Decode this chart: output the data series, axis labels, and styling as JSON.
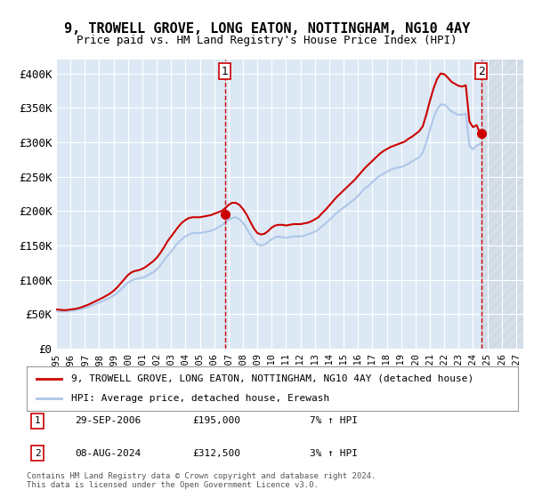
{
  "title": "9, TROWELL GROVE, LONG EATON, NOTTINGHAM, NG10 4AY",
  "subtitle": "Price paid vs. HM Land Registry's House Price Index (HPI)",
  "xlabel": "",
  "ylabel": "",
  "ylim": [
    0,
    420000
  ],
  "xlim_start": 1995.0,
  "xlim_end": 2027.5,
  "yticks": [
    0,
    50000,
    100000,
    150000,
    200000,
    250000,
    300000,
    350000,
    400000
  ],
  "ytick_labels": [
    "£0",
    "£50K",
    "£100K",
    "£150K",
    "£200K",
    "£250K",
    "£300K",
    "£350K",
    "£400K"
  ],
  "xtick_years": [
    1995,
    1996,
    1997,
    1998,
    1999,
    2000,
    2001,
    2002,
    2003,
    2004,
    2005,
    2006,
    2007,
    2008,
    2009,
    2010,
    2011,
    2012,
    2013,
    2014,
    2015,
    2016,
    2017,
    2018,
    2019,
    2020,
    2021,
    2022,
    2023,
    2024,
    2025,
    2026,
    2027
  ],
  "hpi_color": "#aec6e8",
  "price_color": "#cc0000",
  "marker_color": "#cc0000",
  "vline_color": "#cc0000",
  "background_color": "#dce9f5",
  "plot_bg_color": "#dce9f5",
  "grid_color": "#ffffff",
  "sale1_x": 2006.75,
  "sale1_y": 195000,
  "sale1_label": "1",
  "sale2_x": 2024.58,
  "sale2_y": 312500,
  "sale2_label": "2",
  "legend_line1": "9, TROWELL GROVE, LONG EATON, NOTTINGHAM, NG10 4AY (detached house)",
  "legend_line2": "HPI: Average price, detached house, Erewash",
  "note1_label": "1",
  "note1_date": "29-SEP-2006",
  "note1_price": "£195,000",
  "note1_hpi": "7% ↑ HPI",
  "note2_label": "2",
  "note2_date": "08-AUG-2024",
  "note2_price": "£312,500",
  "note2_hpi": "3% ↑ HPI",
  "copyright_text": "Contains HM Land Registry data © Crown copyright and database right 2024.\nThis data is licensed under the Open Government Licence v3.0.",
  "hpi_data_x": [
    1995.0,
    1995.25,
    1995.5,
    1995.75,
    1996.0,
    1996.25,
    1996.5,
    1996.75,
    1997.0,
    1997.25,
    1997.5,
    1997.75,
    1998.0,
    1998.25,
    1998.5,
    1998.75,
    1999.0,
    1999.25,
    1999.5,
    1999.75,
    2000.0,
    2000.25,
    2000.5,
    2000.75,
    2001.0,
    2001.25,
    2001.5,
    2001.75,
    2002.0,
    2002.25,
    2002.5,
    2002.75,
    2003.0,
    2003.25,
    2003.5,
    2003.75,
    2004.0,
    2004.25,
    2004.5,
    2004.75,
    2005.0,
    2005.25,
    2005.5,
    2005.75,
    2006.0,
    2006.25,
    2006.5,
    2006.75,
    2007.0,
    2007.25,
    2007.5,
    2007.75,
    2008.0,
    2008.25,
    2008.5,
    2008.75,
    2009.0,
    2009.25,
    2009.5,
    2009.75,
    2010.0,
    2010.25,
    2010.5,
    2010.75,
    2011.0,
    2011.25,
    2011.5,
    2011.75,
    2012.0,
    2012.25,
    2012.5,
    2012.75,
    2013.0,
    2013.25,
    2013.5,
    2013.75,
    2014.0,
    2014.25,
    2014.5,
    2014.75,
    2015.0,
    2015.25,
    2015.5,
    2015.75,
    2016.0,
    2016.25,
    2016.5,
    2016.75,
    2017.0,
    2017.25,
    2017.5,
    2017.75,
    2018.0,
    2018.25,
    2018.5,
    2018.75,
    2019.0,
    2019.25,
    2019.5,
    2019.75,
    2020.0,
    2020.25,
    2020.5,
    2020.75,
    2021.0,
    2021.25,
    2021.5,
    2021.75,
    2022.0,
    2022.25,
    2022.5,
    2022.75,
    2023.0,
    2023.25,
    2023.5,
    2023.75,
    2024.0,
    2024.25,
    2024.5
  ],
  "hpi_data_y": [
    55000,
    54500,
    54000,
    54500,
    55000,
    55500,
    56500,
    57500,
    59000,
    61000,
    63000,
    65000,
    67000,
    69000,
    71500,
    74000,
    77000,
    81000,
    86000,
    91000,
    96000,
    99000,
    101000,
    102000,
    103000,
    105000,
    108000,
    111000,
    115000,
    121000,
    128000,
    135000,
    141000,
    148000,
    154000,
    159000,
    163000,
    166000,
    168000,
    168000,
    168000,
    169000,
    170000,
    171000,
    173000,
    176000,
    179000,
    183000,
    187000,
    190000,
    191000,
    188000,
    183000,
    175000,
    166000,
    158000,
    152000,
    150000,
    151000,
    155000,
    159000,
    162000,
    163000,
    162000,
    161000,
    162000,
    163000,
    163000,
    163000,
    164000,
    166000,
    168000,
    170000,
    173000,
    178000,
    182000,
    187000,
    192000,
    197000,
    201000,
    205000,
    209000,
    213000,
    217000,
    222000,
    228000,
    233000,
    237000,
    242000,
    247000,
    251000,
    254000,
    257000,
    260000,
    262000,
    263000,
    264000,
    266000,
    269000,
    272000,
    275000,
    278000,
    285000,
    300000,
    318000,
    335000,
    348000,
    355000,
    355000,
    350000,
    345000,
    342000,
    340000,
    340000,
    342000,
    295000,
    290000,
    295000,
    298000
  ],
  "price_data_x": [
    1995.0,
    1995.25,
    1995.5,
    1995.75,
    1996.0,
    1996.25,
    1996.5,
    1996.75,
    1997.0,
    1997.25,
    1997.5,
    1997.75,
    1998.0,
    1998.25,
    1998.5,
    1998.75,
    1999.0,
    1999.25,
    1999.5,
    1999.75,
    2000.0,
    2000.25,
    2000.5,
    2000.75,
    2001.0,
    2001.25,
    2001.5,
    2001.75,
    2002.0,
    2002.25,
    2002.5,
    2002.75,
    2003.0,
    2003.25,
    2003.5,
    2003.75,
    2004.0,
    2004.25,
    2004.5,
    2004.75,
    2005.0,
    2005.25,
    2005.5,
    2005.75,
    2006.0,
    2006.25,
    2006.5,
    2006.75,
    2007.0,
    2007.25,
    2007.5,
    2007.75,
    2008.0,
    2008.25,
    2008.5,
    2008.75,
    2009.0,
    2009.25,
    2009.5,
    2009.75,
    2010.0,
    2010.25,
    2010.5,
    2010.75,
    2011.0,
    2011.25,
    2011.5,
    2011.75,
    2012.0,
    2012.25,
    2012.5,
    2012.75,
    2013.0,
    2013.25,
    2013.5,
    2013.75,
    2014.0,
    2014.25,
    2014.5,
    2014.75,
    2015.0,
    2015.25,
    2015.5,
    2015.75,
    2016.0,
    2016.25,
    2016.5,
    2016.75,
    2017.0,
    2017.25,
    2017.5,
    2017.75,
    2018.0,
    2018.25,
    2018.5,
    2018.75,
    2019.0,
    2019.25,
    2019.5,
    2019.75,
    2020.0,
    2020.25,
    2020.5,
    2020.75,
    2021.0,
    2021.25,
    2021.5,
    2021.75,
    2022.0,
    2022.25,
    2022.5,
    2022.75,
    2023.0,
    2023.25,
    2023.5,
    2023.75,
    2024.0,
    2024.25,
    2024.5
  ],
  "price_data_y": [
    57000,
    56500,
    56000,
    56000,
    57000,
    57500,
    58500,
    60000,
    62000,
    64000,
    66500,
    69000,
    71500,
    74000,
    77000,
    80000,
    84000,
    89000,
    95000,
    101000,
    107000,
    111000,
    113000,
    114000,
    116000,
    119000,
    123000,
    127000,
    132000,
    139000,
    147000,
    156000,
    163000,
    170000,
    177000,
    183000,
    187000,
    190000,
    191000,
    191000,
    191000,
    192000,
    193000,
    194000,
    196000,
    198000,
    200000,
    204000,
    209000,
    212000,
    212000,
    209000,
    203000,
    195000,
    185000,
    175000,
    168000,
    166000,
    167000,
    171000,
    176000,
    179000,
    180000,
    180000,
    179000,
    180000,
    181000,
    181000,
    181000,
    182000,
    183000,
    185000,
    188000,
    191000,
    197000,
    202000,
    208000,
    214000,
    220000,
    225000,
    230000,
    235000,
    240000,
    245000,
    251000,
    257000,
    263000,
    268000,
    273000,
    278000,
    283000,
    287000,
    290000,
    293000,
    295000,
    297000,
    299000,
    301000,
    305000,
    308000,
    312000,
    316000,
    323000,
    340000,
    360000,
    378000,
    392000,
    400000,
    399000,
    394000,
    388000,
    385000,
    382000,
    381000,
    383000,
    330000,
    322000,
    325000,
    312500
  ]
}
